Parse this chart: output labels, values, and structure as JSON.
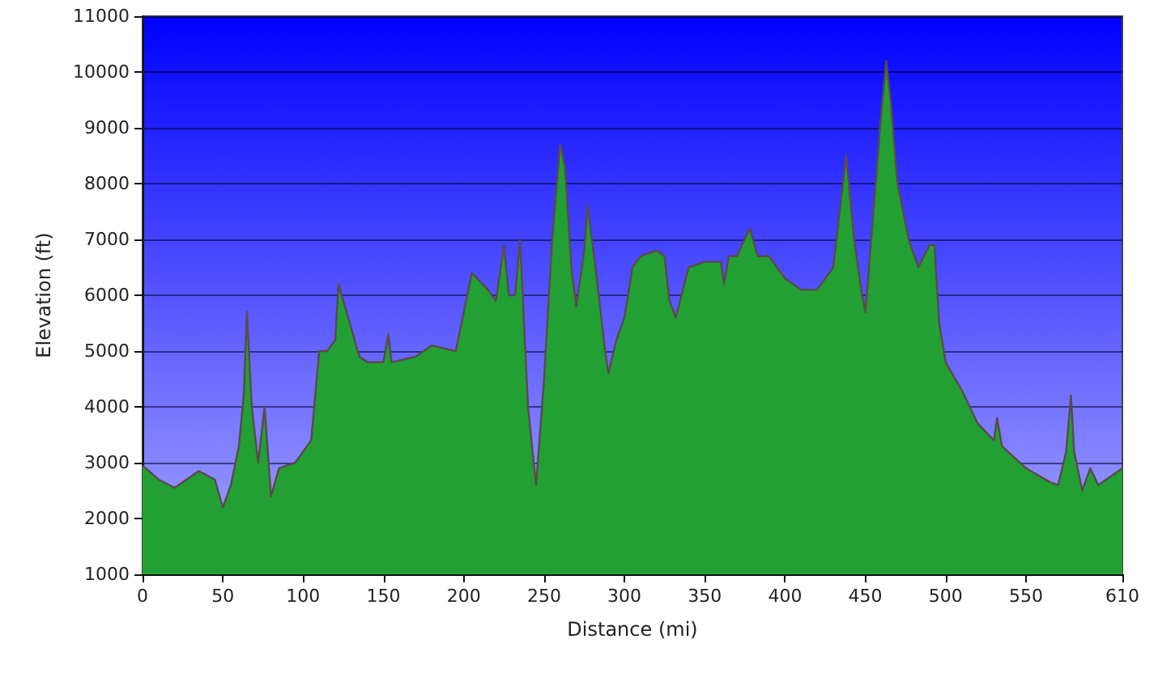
{
  "chart_data": {
    "type": "area",
    "xlabel": "Distance (mi)",
    "ylabel": "Elevation (ft)",
    "color": "#22a033",
    "marker": "none",
    "grid": "y",
    "x": [
      0,
      10,
      20,
      30,
      35,
      45,
      50,
      55,
      60,
      63,
      65,
      68,
      72,
      76,
      80,
      85,
      95,
      105,
      110,
      115,
      120,
      122,
      128,
      135,
      140,
      150,
      153,
      155,
      170,
      180,
      195,
      205,
      215,
      220,
      225,
      228,
      232,
      235,
      240,
      245,
      250,
      255,
      260,
      263,
      267,
      270,
      275,
      277,
      282,
      288,
      290,
      295,
      300,
      305,
      310,
      320,
      325,
      328,
      332,
      340,
      350,
      360,
      362,
      365,
      370,
      378,
      383,
      390,
      400,
      410,
      420,
      430,
      438,
      443,
      448,
      450,
      455,
      460,
      463,
      466,
      470,
      477,
      483,
      490,
      493,
      496,
      500,
      510,
      520,
      530,
      532,
      535,
      550,
      565,
      570,
      575,
      578,
      580,
      585,
      590,
      595,
      605,
      610
    ],
    "values": [
      2950,
      2700,
      2550,
      2750,
      2850,
      2700,
      2200,
      2600,
      3300,
      4200,
      5700,
      4000,
      3000,
      4000,
      2400,
      2900,
      3000,
      3400,
      5000,
      5000,
      5200,
      6200,
      5600,
      4900,
      4800,
      4800,
      5300,
      4800,
      4900,
      5100,
      5000,
      6400,
      6100,
      5900,
      6900,
      6000,
      6000,
      7000,
      4000,
      2600,
      4500,
      7000,
      8700,
      8300,
      6500,
      5800,
      6800,
      7600,
      6500,
      5000,
      4600,
      5200,
      5600,
      6500,
      6700,
      6800,
      6700,
      5900,
      5600,
      6500,
      6600,
      6600,
      6200,
      6700,
      6700,
      7200,
      6700,
      6700,
      6300,
      6100,
      6100,
      6500,
      8500,
      7000,
      6000,
      5700,
      7500,
      9300,
      10200,
      9400,
      8000,
      7000,
      6500,
      6900,
      6900,
      5500,
      4800,
      4300,
      3700,
      3400,
      3800,
      3300,
      2900,
      2650,
      2600,
      3200,
      4200,
      3200,
      2500,
      2900,
      2600,
      2800,
      2900
    ],
    "xlim": [
      0,
      610
    ],
    "xticks": [
      0,
      50,
      100,
      150,
      200,
      250,
      300,
      350,
      400,
      450,
      500,
      550,
      610
    ],
    "ylim": [
      1000,
      11000
    ],
    "yticks": [
      1000,
      2000,
      3000,
      4000,
      5000,
      6000,
      7000,
      8000,
      9000,
      10000,
      11000
    ]
  }
}
